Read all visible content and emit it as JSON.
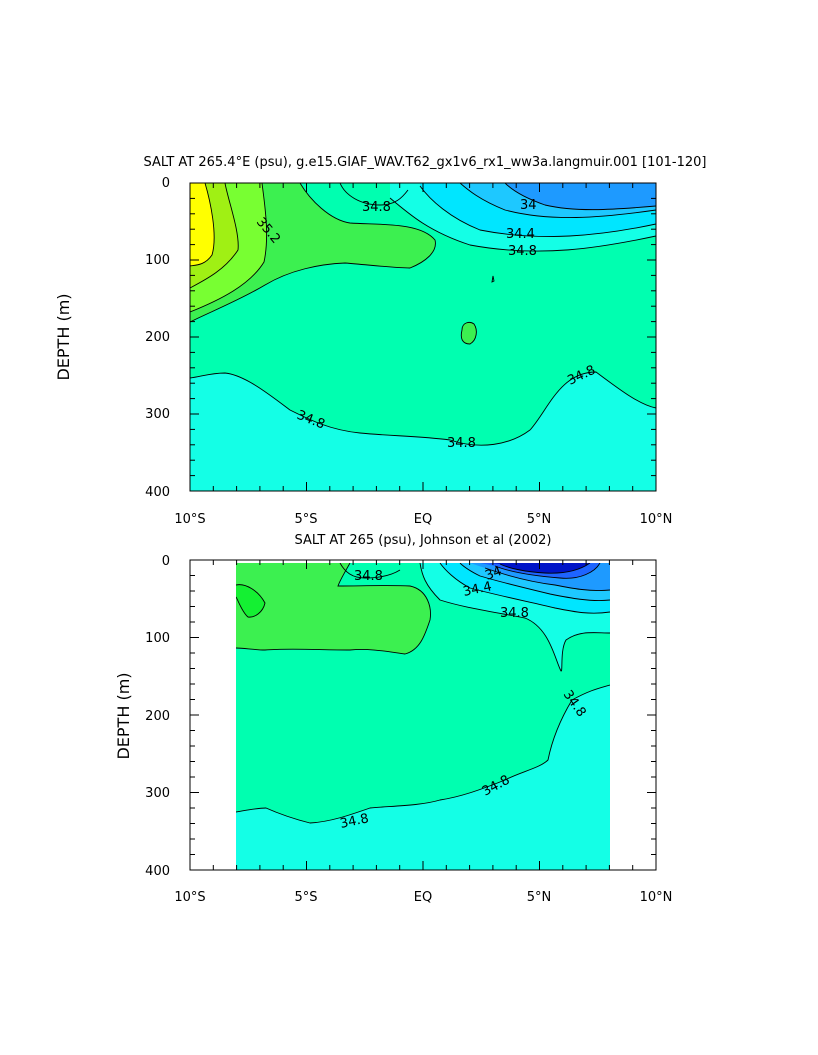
{
  "chart_data": [
    {
      "type": "heatmap",
      "title": "SALT AT 265.4°E (psu), g.e15.GIAF_WAV.T62_gx1v6_rx1_ww3a.langmuir.001 [101-120]",
      "xlabel": "",
      "ylabel": "DEPTH (m)",
      "xlim": [
        -10,
        10
      ],
      "ylim": [
        400,
        0
      ],
      "x_tick_labels": [
        "10°S",
        "5°S",
        "EQ",
        "5°N",
        "10°N"
      ],
      "y_tick_labels": [
        "0",
        "100",
        "200",
        "300",
        "400"
      ],
      "contour_labels": [
        "35.2",
        "34.8",
        "34",
        "34.4",
        "34.8",
        "34.8",
        "34.8",
        "34.8"
      ],
      "colors": {
        "lt34": "#1e9aff",
        "34_34.2": "#1ec8ff",
        "34.2_34.4": "#00e6ff",
        "34.4_34.6": "#14ffe6",
        "34.6_34.8": "#00ffc8",
        "34.8_35.0": "#00ffb0",
        "35.0_35.2": "#3cf050",
        "35.2_35.4": "#78ff32",
        "35.4_35.6": "#a0f014",
        "gt35.6": "#ffff00"
      }
    },
    {
      "type": "heatmap",
      "title": "SALT AT 265 (psu), Johnson et al (2002)",
      "xlabel": "",
      "ylabel": "DEPTH (m)",
      "xlim": [
        -10,
        10
      ],
      "ylim": [
        400,
        0
      ],
      "data_x_range": [
        -8,
        8
      ],
      "x_tick_labels": [
        "10°S",
        "5°S",
        "EQ",
        "5°N",
        "10°N"
      ],
      "y_tick_labels": [
        "0",
        "100",
        "200",
        "300",
        "400"
      ],
      "contour_labels": [
        "34.8",
        "34",
        "34.4",
        "34.8",
        "34.8",
        "34.8",
        "34.8"
      ],
      "colors": {
        "lt33.6": "#0014c8",
        "33.6_33.8": "#1e64ff",
        "33.8_34.0": "#1e9aff",
        "34.0_34.2": "#1ec8ff",
        "34.2_34.4": "#00e6ff",
        "34.4_34.6": "#14ffe6",
        "34.6_34.8": "#00ffc8",
        "34.8_35.0": "#00ffb0",
        "35.0_35.2": "#3cf050",
        "35.2_35.4": "#14f032"
      }
    }
  ]
}
